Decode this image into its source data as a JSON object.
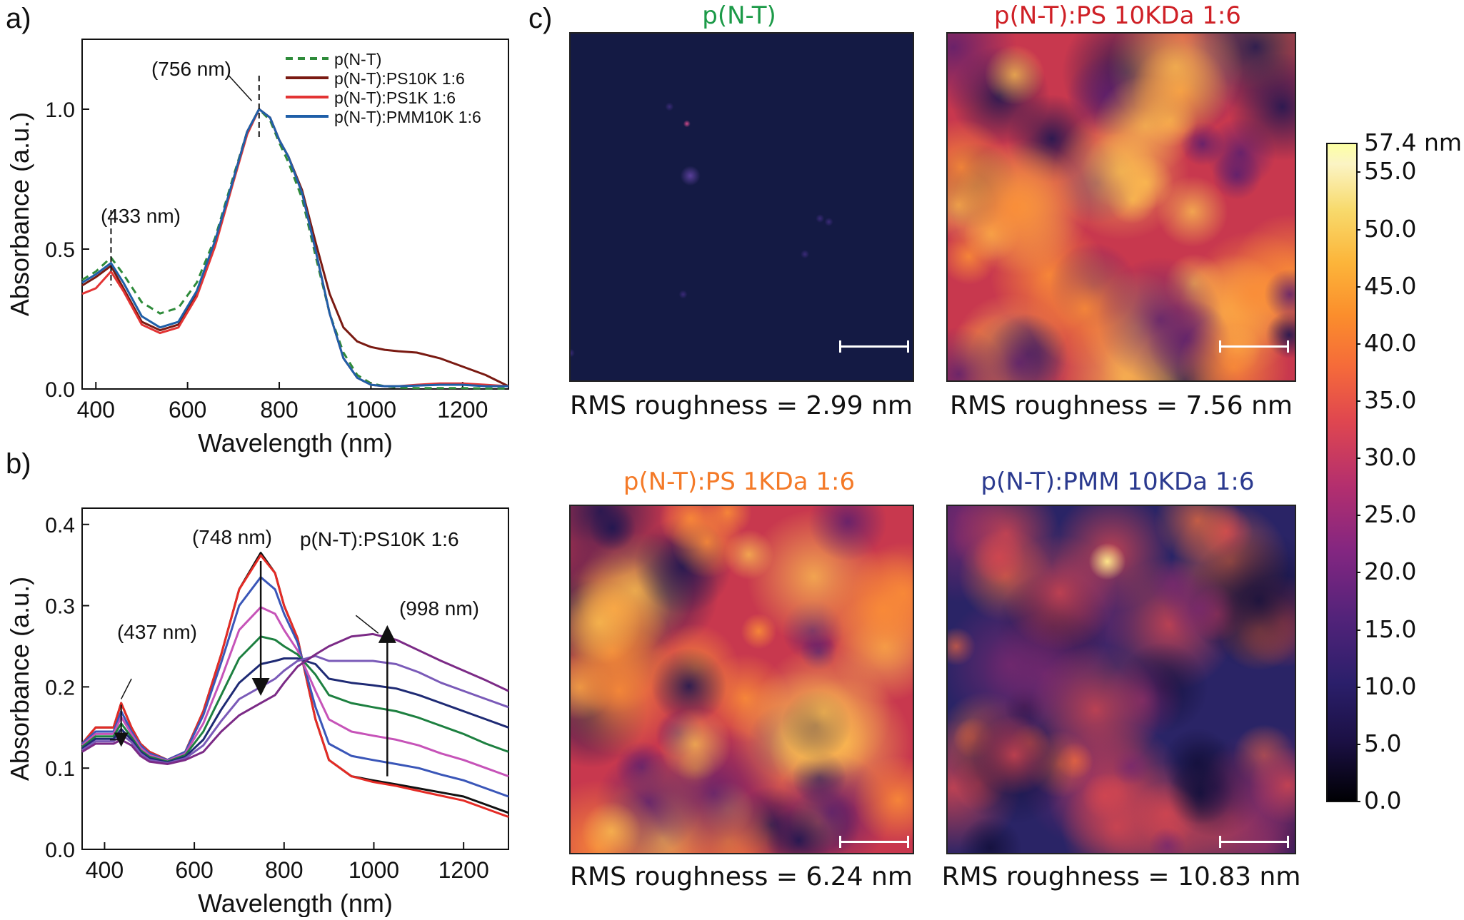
{
  "panels": {
    "a": "a)",
    "b": "b)",
    "c": "c)"
  },
  "chart_data": [
    {
      "type": "line",
      "panel": "a",
      "xlabel": "Wavelength (nm)",
      "ylabel": "Absorbance (a.u.)",
      "xlim": [
        370,
        1300
      ],
      "ylim": [
        0,
        1.25
      ],
      "xticks": [
        400,
        600,
        800,
        1000,
        1200
      ],
      "yticks": [
        0.0,
        0.5,
        1.0
      ],
      "ytick_labels": [
        "0.0",
        "0.5",
        "1.0"
      ],
      "legend_position": "top-right",
      "annotations": [
        "(756 nm)",
        "(433 nm)"
      ],
      "series": [
        {
          "name": "p(N-T)",
          "color": "#2e8b3a",
          "dashed": true,
          "x": [
            370,
            400,
            433,
            460,
            500,
            540,
            580,
            620,
            660,
            700,
            730,
            756,
            780,
            800,
            820,
            850,
            880,
            910,
            940,
            970,
            1000,
            1030,
            1060,
            1100,
            1150,
            1200,
            1250,
            1300
          ],
          "y": [
            0.39,
            0.42,
            0.47,
            0.41,
            0.31,
            0.27,
            0.29,
            0.38,
            0.54,
            0.76,
            0.92,
            1.0,
            0.96,
            0.88,
            0.81,
            0.68,
            0.47,
            0.27,
            0.13,
            0.05,
            0.02,
            0.01,
            0.005,
            0.003,
            0.003,
            0.003,
            0.002,
            0.002
          ]
        },
        {
          "name": "p(N-T):PS10K 1:6",
          "color": "#7a1a12",
          "dashed": false,
          "x": [
            370,
            400,
            433,
            460,
            500,
            540,
            580,
            620,
            660,
            700,
            730,
            756,
            780,
            800,
            820,
            850,
            880,
            910,
            940,
            970,
            1000,
            1030,
            1060,
            1100,
            1150,
            1200,
            1250,
            1300
          ],
          "y": [
            0.37,
            0.4,
            0.44,
            0.36,
            0.24,
            0.21,
            0.23,
            0.34,
            0.52,
            0.75,
            0.92,
            1.0,
            0.97,
            0.89,
            0.83,
            0.71,
            0.52,
            0.34,
            0.22,
            0.17,
            0.15,
            0.14,
            0.135,
            0.13,
            0.11,
            0.08,
            0.05,
            0.01
          ]
        },
        {
          "name": "p(N-T):PS1K 1:6",
          "color": "#e33434",
          "dashed": false,
          "x": [
            370,
            400,
            433,
            460,
            500,
            540,
            580,
            620,
            660,
            700,
            730,
            756,
            780,
            800,
            820,
            850,
            880,
            910,
            940,
            970,
            1000,
            1030,
            1060,
            1100,
            1150,
            1200,
            1250,
            1300
          ],
          "y": [
            0.34,
            0.36,
            0.42,
            0.35,
            0.23,
            0.2,
            0.22,
            0.33,
            0.51,
            0.74,
            0.91,
            1.0,
            0.97,
            0.89,
            0.83,
            0.7,
            0.49,
            0.27,
            0.11,
            0.04,
            0.015,
            0.01,
            0.01,
            0.015,
            0.02,
            0.02,
            0.015,
            0.01
          ]
        },
        {
          "name": "p(N-T):PMM10K 1:6",
          "color": "#1f5fa8",
          "dashed": false,
          "x": [
            370,
            400,
            433,
            460,
            500,
            540,
            580,
            620,
            660,
            700,
            730,
            756,
            780,
            800,
            820,
            850,
            880,
            910,
            940,
            970,
            1000,
            1030,
            1060,
            1100,
            1150,
            1200,
            1250,
            1300
          ],
          "y": [
            0.38,
            0.41,
            0.45,
            0.38,
            0.26,
            0.22,
            0.24,
            0.35,
            0.53,
            0.75,
            0.92,
            1.0,
            0.97,
            0.89,
            0.83,
            0.7,
            0.49,
            0.27,
            0.11,
            0.04,
            0.015,
            0.01,
            0.01,
            0.012,
            0.015,
            0.015,
            0.01,
            0.01
          ]
        }
      ]
    },
    {
      "type": "line",
      "panel": "b",
      "xlabel": "Wavelength (nm)",
      "ylabel": "Absorbance (a.u.)",
      "xlim": [
        350,
        1300
      ],
      "ylim": [
        0,
        0.42
      ],
      "xticks": [
        400,
        600,
        800,
        1000,
        1200
      ],
      "yticks": [
        0.0,
        0.1,
        0.2,
        0.3,
        0.4
      ],
      "ytick_labels": [
        "0.0",
        "0.1",
        "0.2",
        "0.3",
        "0.4"
      ],
      "inset_label": "p(N-T):PS10K 1:6",
      "annotations": [
        "(748 nm)",
        "(437 nm)",
        "(998 nm)"
      ],
      "x": [
        350,
        380,
        420,
        437,
        460,
        480,
        500,
        540,
        580,
        620,
        660,
        700,
        748,
        780,
        800,
        830,
        870,
        900,
        950,
        998,
        1050,
        1100,
        1150,
        1200,
        1250,
        1300
      ],
      "series": [
        {
          "color": "#111111",
          "y": [
            0.13,
            0.15,
            0.15,
            0.18,
            0.15,
            0.13,
            0.12,
            0.11,
            0.12,
            0.17,
            0.24,
            0.32,
            0.365,
            0.34,
            0.3,
            0.26,
            0.16,
            0.11,
            0.09,
            0.085,
            0.08,
            0.075,
            0.07,
            0.065,
            0.055,
            0.045
          ]
        },
        {
          "color": "#e52b25",
          "y": [
            0.13,
            0.15,
            0.15,
            0.18,
            0.15,
            0.13,
            0.12,
            0.11,
            0.12,
            0.17,
            0.24,
            0.32,
            0.362,
            0.34,
            0.3,
            0.26,
            0.16,
            0.11,
            0.09,
            0.083,
            0.078,
            0.072,
            0.066,
            0.06,
            0.05,
            0.04
          ]
        },
        {
          "color": "#3a56b8",
          "y": [
            0.13,
            0.145,
            0.145,
            0.17,
            0.145,
            0.128,
            0.118,
            0.11,
            0.12,
            0.165,
            0.23,
            0.3,
            0.335,
            0.32,
            0.29,
            0.255,
            0.175,
            0.13,
            0.115,
            0.11,
            0.105,
            0.1,
            0.092,
            0.085,
            0.075,
            0.065
          ]
        },
        {
          "color": "#c653b8",
          "y": [
            0.128,
            0.142,
            0.142,
            0.163,
            0.142,
            0.125,
            0.116,
            0.109,
            0.118,
            0.155,
            0.21,
            0.27,
            0.298,
            0.29,
            0.27,
            0.245,
            0.195,
            0.16,
            0.145,
            0.14,
            0.135,
            0.128,
            0.118,
            0.11,
            0.1,
            0.09
          ]
        },
        {
          "color": "#1d8040",
          "y": [
            0.126,
            0.139,
            0.139,
            0.155,
            0.138,
            0.122,
            0.114,
            0.108,
            0.116,
            0.145,
            0.19,
            0.235,
            0.262,
            0.258,
            0.25,
            0.24,
            0.215,
            0.19,
            0.18,
            0.175,
            0.17,
            0.162,
            0.152,
            0.142,
            0.13,
            0.12
          ]
        },
        {
          "color": "#1e2a74",
          "y": [
            0.124,
            0.136,
            0.136,
            0.148,
            0.135,
            0.12,
            0.112,
            0.107,
            0.114,
            0.135,
            0.172,
            0.205,
            0.228,
            0.232,
            0.235,
            0.235,
            0.228,
            0.21,
            0.205,
            0.202,
            0.198,
            0.19,
            0.18,
            0.17,
            0.16,
            0.15
          ]
        },
        {
          "color": "#7a5ab8",
          "y": [
            0.122,
            0.133,
            0.133,
            0.142,
            0.132,
            0.118,
            0.11,
            0.106,
            0.112,
            0.128,
            0.158,
            0.185,
            0.2,
            0.21,
            0.22,
            0.232,
            0.238,
            0.232,
            0.232,
            0.232,
            0.228,
            0.218,
            0.205,
            0.195,
            0.185,
            0.175
          ]
        },
        {
          "color": "#7b2a86",
          "y": [
            0.12,
            0.13,
            0.13,
            0.135,
            0.128,
            0.115,
            0.108,
            0.105,
            0.11,
            0.12,
            0.145,
            0.165,
            0.18,
            0.19,
            0.205,
            0.225,
            0.24,
            0.25,
            0.262,
            0.265,
            0.258,
            0.245,
            0.232,
            0.22,
            0.208,
            0.195
          ]
        }
      ]
    }
  ],
  "afm": [
    {
      "title": "p(N-T)",
      "title_color": "#1c9a48",
      "rms": "RMS roughness = 2.99 nm",
      "kind": "flat"
    },
    {
      "title": "p(N-T):PS 10KDa 1:6",
      "title_color": "#cf2026",
      "rms": "RMS roughness = 7.56 nm",
      "kind": "bright"
    },
    {
      "title": "p(N-T):PS 1KDa 1:6",
      "title_color": "#f47a28",
      "rms": "RMS roughness = 6.24 nm",
      "kind": "bright"
    },
    {
      "title": "p(N-T):PMM 10KDa 1:6",
      "title_color": "#2b3a8f",
      "rms": "RMS roughness = 10.83 nm",
      "kind": "dark"
    }
  ],
  "colorbar": {
    "max_label": "57.4 nm",
    "max_value": 57.4,
    "ticks": [
      "55.0",
      "50.0",
      "45.0",
      "40.0",
      "35.0",
      "30.0",
      "25.0",
      "20.0",
      "15.0",
      "10.0",
      "5.0",
      "0.0"
    ]
  }
}
